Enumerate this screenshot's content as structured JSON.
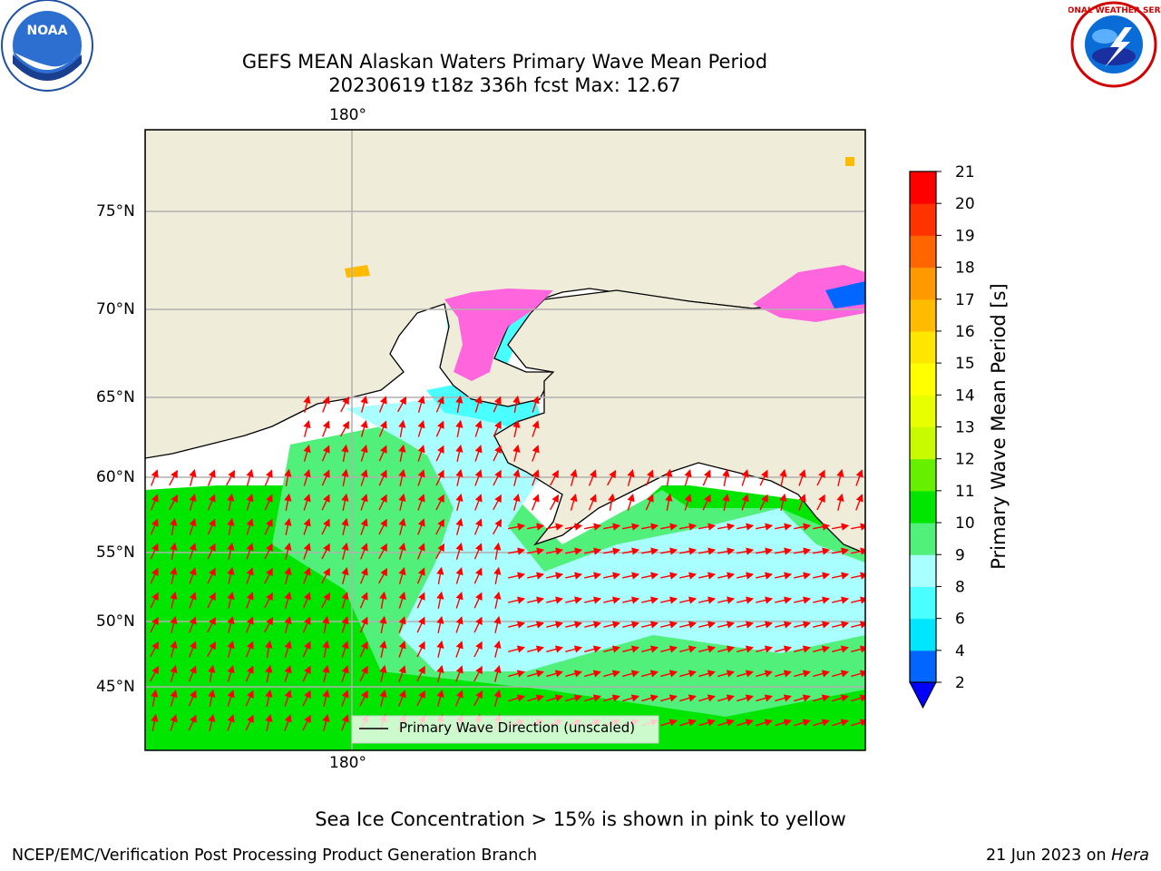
{
  "header": {
    "title_line1": "GEFS MEAN Alaskan Waters Primary Wave Mean Period",
    "title_line2": "20230619 t18z 336h fcst   Max: 12.67",
    "noara_logo_text": "NOAA",
    "nws_logo_text": "NATIONAL WEATHER SERVICE"
  },
  "map": {
    "lat_labels": [
      "75°N",
      "70°N",
      "65°N",
      "60°N",
      "55°N",
      "50°N",
      "45°N"
    ],
    "lon_label_top": "180°",
    "lon_label_bottom": "180°",
    "legend_label": "Primary Wave Direction (unscaled)",
    "colors": {
      "land": "#efecda",
      "ocean_primary": "#00e600",
      "ocean_secondary": "#50f07a",
      "ocean_tertiary": "#a9ffff",
      "ocean_quaternary": "#4affff",
      "ice": "#ff66dd",
      "arrow": "#ff0000"
    }
  },
  "colorbar": {
    "label": "Primary Wave Mean Period [s]",
    "ticks": [
      "2",
      "4",
      "6",
      "8",
      "9",
      "10",
      "11",
      "12",
      "13",
      "14",
      "15",
      "16",
      "17",
      "18",
      "19",
      "20",
      "21"
    ],
    "colors": [
      "#0066ff",
      "#00e6ff",
      "#4affff",
      "#a9ffff",
      "#50f07a",
      "#00e600",
      "#66f000",
      "#c8fa00",
      "#e8ff00",
      "#ffff00",
      "#ffe600",
      "#ffbb00",
      "#ff9900",
      "#ff6600",
      "#ff3300",
      "#ff0000"
    ],
    "extend_color": "#0000ff"
  },
  "caption": "Sea Ice Concentration > 15% is shown in pink to yellow",
  "footer": {
    "left": "NCEP/EMC/Verification Post Processing Product Generation Branch",
    "date": "21 Jun 2023 on ",
    "machine": "Hera"
  }
}
